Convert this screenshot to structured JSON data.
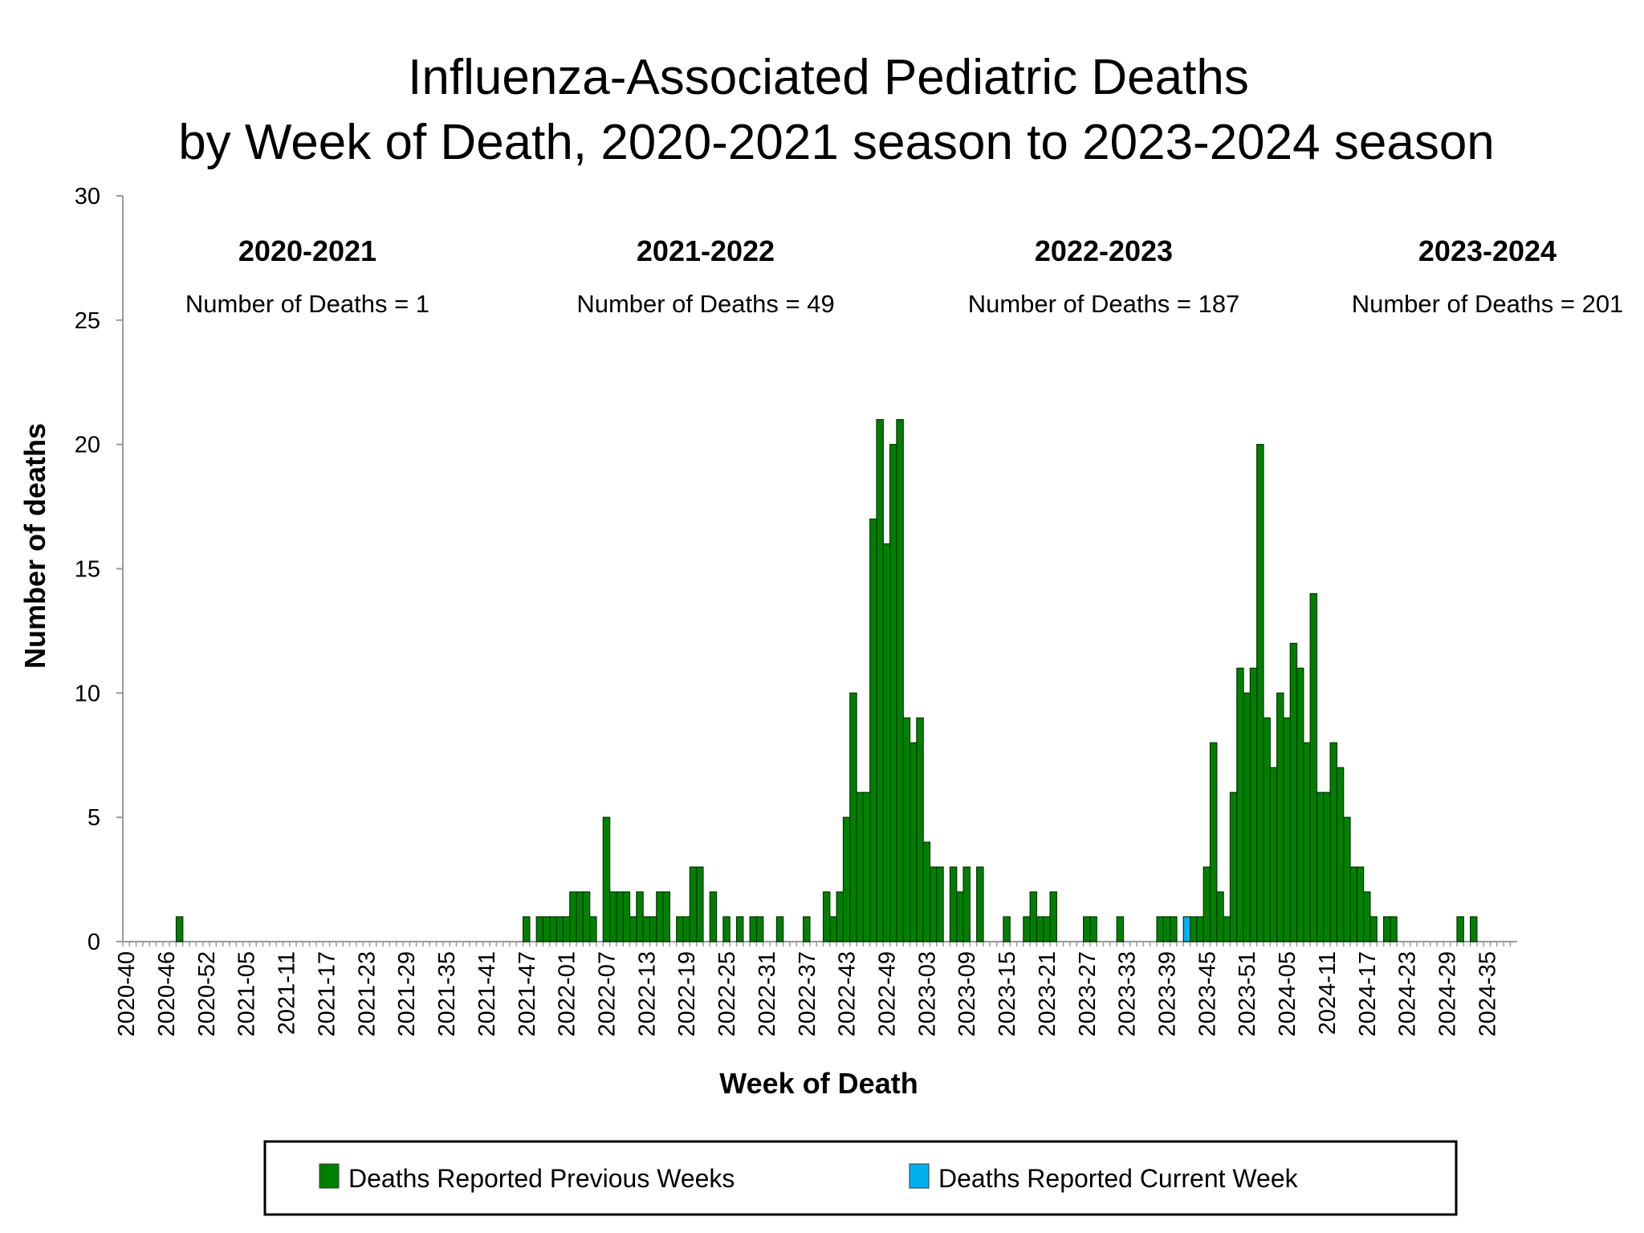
{
  "chart_data": {
    "type": "bar",
    "stacked": true,
    "title": [
      "Influenza-Associated Pediatric Deaths",
      "by Week of Death, 2020-2021 season to 2023-2024 season"
    ],
    "x_label": "Week of Death",
    "y_label": "Number of deaths",
    "annotations": [
      {
        "title": "2020-2021",
        "text": "Number of Deaths = 1"
      },
      {
        "title": "2021-2022",
        "text": "Number of Deaths = 49"
      },
      {
        "title": "2022-2023",
        "text": "Number of Deaths = 187"
      },
      {
        "title": "2023-2024",
        "text": "Number of Deaths = 201"
      }
    ],
    "categories": [
      "2020-40",
      null,
      null,
      null,
      null,
      null,
      "2020-46",
      null,
      null,
      null,
      null,
      null,
      "2020-52",
      null,
      null,
      null,
      null,
      null,
      "2021-05",
      null,
      null,
      null,
      null,
      null,
      "2021-11",
      null,
      null,
      null,
      null,
      null,
      "2021-17",
      null,
      null,
      null,
      null,
      null,
      "2021-23",
      null,
      null,
      null,
      null,
      null,
      "2021-29",
      null,
      null,
      null,
      null,
      null,
      "2021-35",
      null,
      null,
      null,
      null,
      null,
      "2021-41",
      null,
      null,
      null,
      null,
      null,
      "2021-47",
      null,
      null,
      null,
      null,
      null,
      "2022-01",
      null,
      null,
      null,
      null,
      null,
      "2022-07",
      null,
      null,
      null,
      null,
      null,
      "2022-13",
      null,
      null,
      null,
      null,
      null,
      "2022-19",
      null,
      null,
      null,
      null,
      null,
      "2022-25",
      null,
      null,
      null,
      null,
      null,
      "2022-31",
      null,
      null,
      null,
      null,
      null,
      "2022-37",
      null,
      null,
      null,
      null,
      null,
      "2022-43",
      null,
      null,
      null,
      null,
      null,
      "2022-49",
      null,
      null,
      null,
      null,
      null,
      "2023-03",
      null,
      null,
      null,
      null,
      null,
      "2023-09",
      null,
      null,
      null,
      null,
      null,
      "2023-15",
      null,
      null,
      null,
      null,
      null,
      "2023-21",
      null,
      null,
      null,
      null,
      null,
      "2023-27",
      null,
      null,
      null,
      null,
      null,
      "2023-33",
      null,
      null,
      null,
      null,
      null,
      "2023-39",
      null,
      null,
      null,
      null,
      null,
      "2023-45",
      null,
      null,
      null,
      null,
      null,
      "2023-51",
      null,
      null,
      null,
      null,
      null,
      "2024-05",
      null,
      null,
      null,
      null,
      null,
      "2024-11",
      null,
      null,
      null,
      null,
      null,
      "2024-17",
      null,
      null,
      null,
      null,
      null,
      "2024-23",
      null,
      null,
      null,
      null,
      null,
      "2024-29",
      null,
      null,
      null,
      null,
      null,
      "2024-35",
      null,
      null,
      null,
      null
    ],
    "series": [
      {
        "name": "Deaths Reported Previous Weeks",
        "color": "#008000",
        "values": [
          0,
          0,
          0,
          0,
          0,
          0,
          0,
          0,
          1,
          0,
          0,
          0,
          0,
          0,
          0,
          0,
          0,
          0,
          0,
          0,
          0,
          0,
          0,
          0,
          0,
          0,
          0,
          0,
          0,
          0,
          0,
          0,
          0,
          0,
          0,
          0,
          0,
          0,
          0,
          0,
          0,
          0,
          0,
          0,
          0,
          0,
          0,
          0,
          0,
          0,
          0,
          0,
          0,
          0,
          0,
          0,
          0,
          0,
          0,
          0,
          1,
          0,
          1,
          1,
          1,
          1,
          1,
          2,
          2,
          2,
          1,
          0,
          5,
          2,
          2,
          2,
          1,
          2,
          1,
          1,
          2,
          2,
          0,
          1,
          1,
          3,
          3,
          0,
          2,
          0,
          1,
          0,
          1,
          0,
          1,
          1,
          0,
          0,
          1,
          0,
          0,
          0,
          1,
          0,
          0,
          2,
          1,
          2,
          5,
          10,
          6,
          6,
          17,
          21,
          16,
          20,
          21,
          9,
          8,
          9,
          4,
          3,
          3,
          0,
          3,
          2,
          3,
          0,
          3,
          0,
          0,
          0,
          1,
          0,
          0,
          1,
          2,
          1,
          1,
          2,
          0,
          0,
          0,
          0,
          1,
          1,
          0,
          0,
          0,
          1,
          0,
          0,
          0,
          0,
          0,
          1,
          1,
          1,
          0,
          0,
          1,
          1,
          3,
          8,
          2,
          1,
          6,
          11,
          10,
          11,
          20,
          9,
          7,
          10,
          9,
          12,
          11,
          8,
          14,
          6,
          6,
          8,
          7,
          5,
          3,
          3,
          2,
          1,
          0,
          1,
          1,
          0,
          0,
          0,
          0,
          0,
          0,
          0,
          0,
          0,
          1,
          0,
          1,
          0,
          0,
          0,
          0,
          0,
          0
        ]
      },
      {
        "name": "Deaths Reported Current Week",
        "color": "#00b0f0",
        "values": [
          0,
          0,
          0,
          0,
          0,
          0,
          0,
          0,
          0,
          0,
          0,
          0,
          0,
          0,
          0,
          0,
          0,
          0,
          0,
          0,
          0,
          0,
          0,
          0,
          0,
          0,
          0,
          0,
          0,
          0,
          0,
          0,
          0,
          0,
          0,
          0,
          0,
          0,
          0,
          0,
          0,
          0,
          0,
          0,
          0,
          0,
          0,
          0,
          0,
          0,
          0,
          0,
          0,
          0,
          0,
          0,
          0,
          0,
          0,
          0,
          0,
          0,
          0,
          0,
          0,
          0,
          0,
          0,
          0,
          0,
          0,
          0,
          0,
          0,
          0,
          0,
          0,
          0,
          0,
          0,
          0,
          0,
          0,
          0,
          0,
          0,
          0,
          0,
          0,
          0,
          0,
          0,
          0,
          0,
          0,
          0,
          0,
          0,
          0,
          0,
          0,
          0,
          0,
          0,
          0,
          0,
          0,
          0,
          0,
          0,
          0,
          0,
          0,
          0,
          0,
          0,
          0,
          0,
          0,
          0,
          0,
          0,
          0,
          0,
          0,
          0,
          0,
          0,
          0,
          0,
          0,
          0,
          0,
          0,
          0,
          0,
          0,
          0,
          0,
          0,
          0,
          0,
          0,
          0,
          0,
          0,
          0,
          0,
          0,
          0,
          0,
          0,
          0,
          0,
          0,
          0,
          0,
          0,
          0,
          1,
          0,
          0,
          0,
          0,
          0,
          0,
          0,
          0,
          0,
          0,
          0,
          0,
          0,
          0,
          0,
          0,
          0,
          0,
          0,
          0,
          0,
          0,
          0,
          0,
          0,
          0,
          0,
          0,
          0,
          0,
          0,
          0,
          0,
          0,
          0,
          0,
          0,
          0,
          0,
          0,
          0,
          0,
          0,
          0,
          0,
          0,
          0,
          0,
          0
        ]
      }
    ],
    "ylim": [
      0,
      30
    ],
    "yticks": [
      0,
      5,
      10,
      15,
      20,
      25,
      30
    ],
    "grid": false
  }
}
